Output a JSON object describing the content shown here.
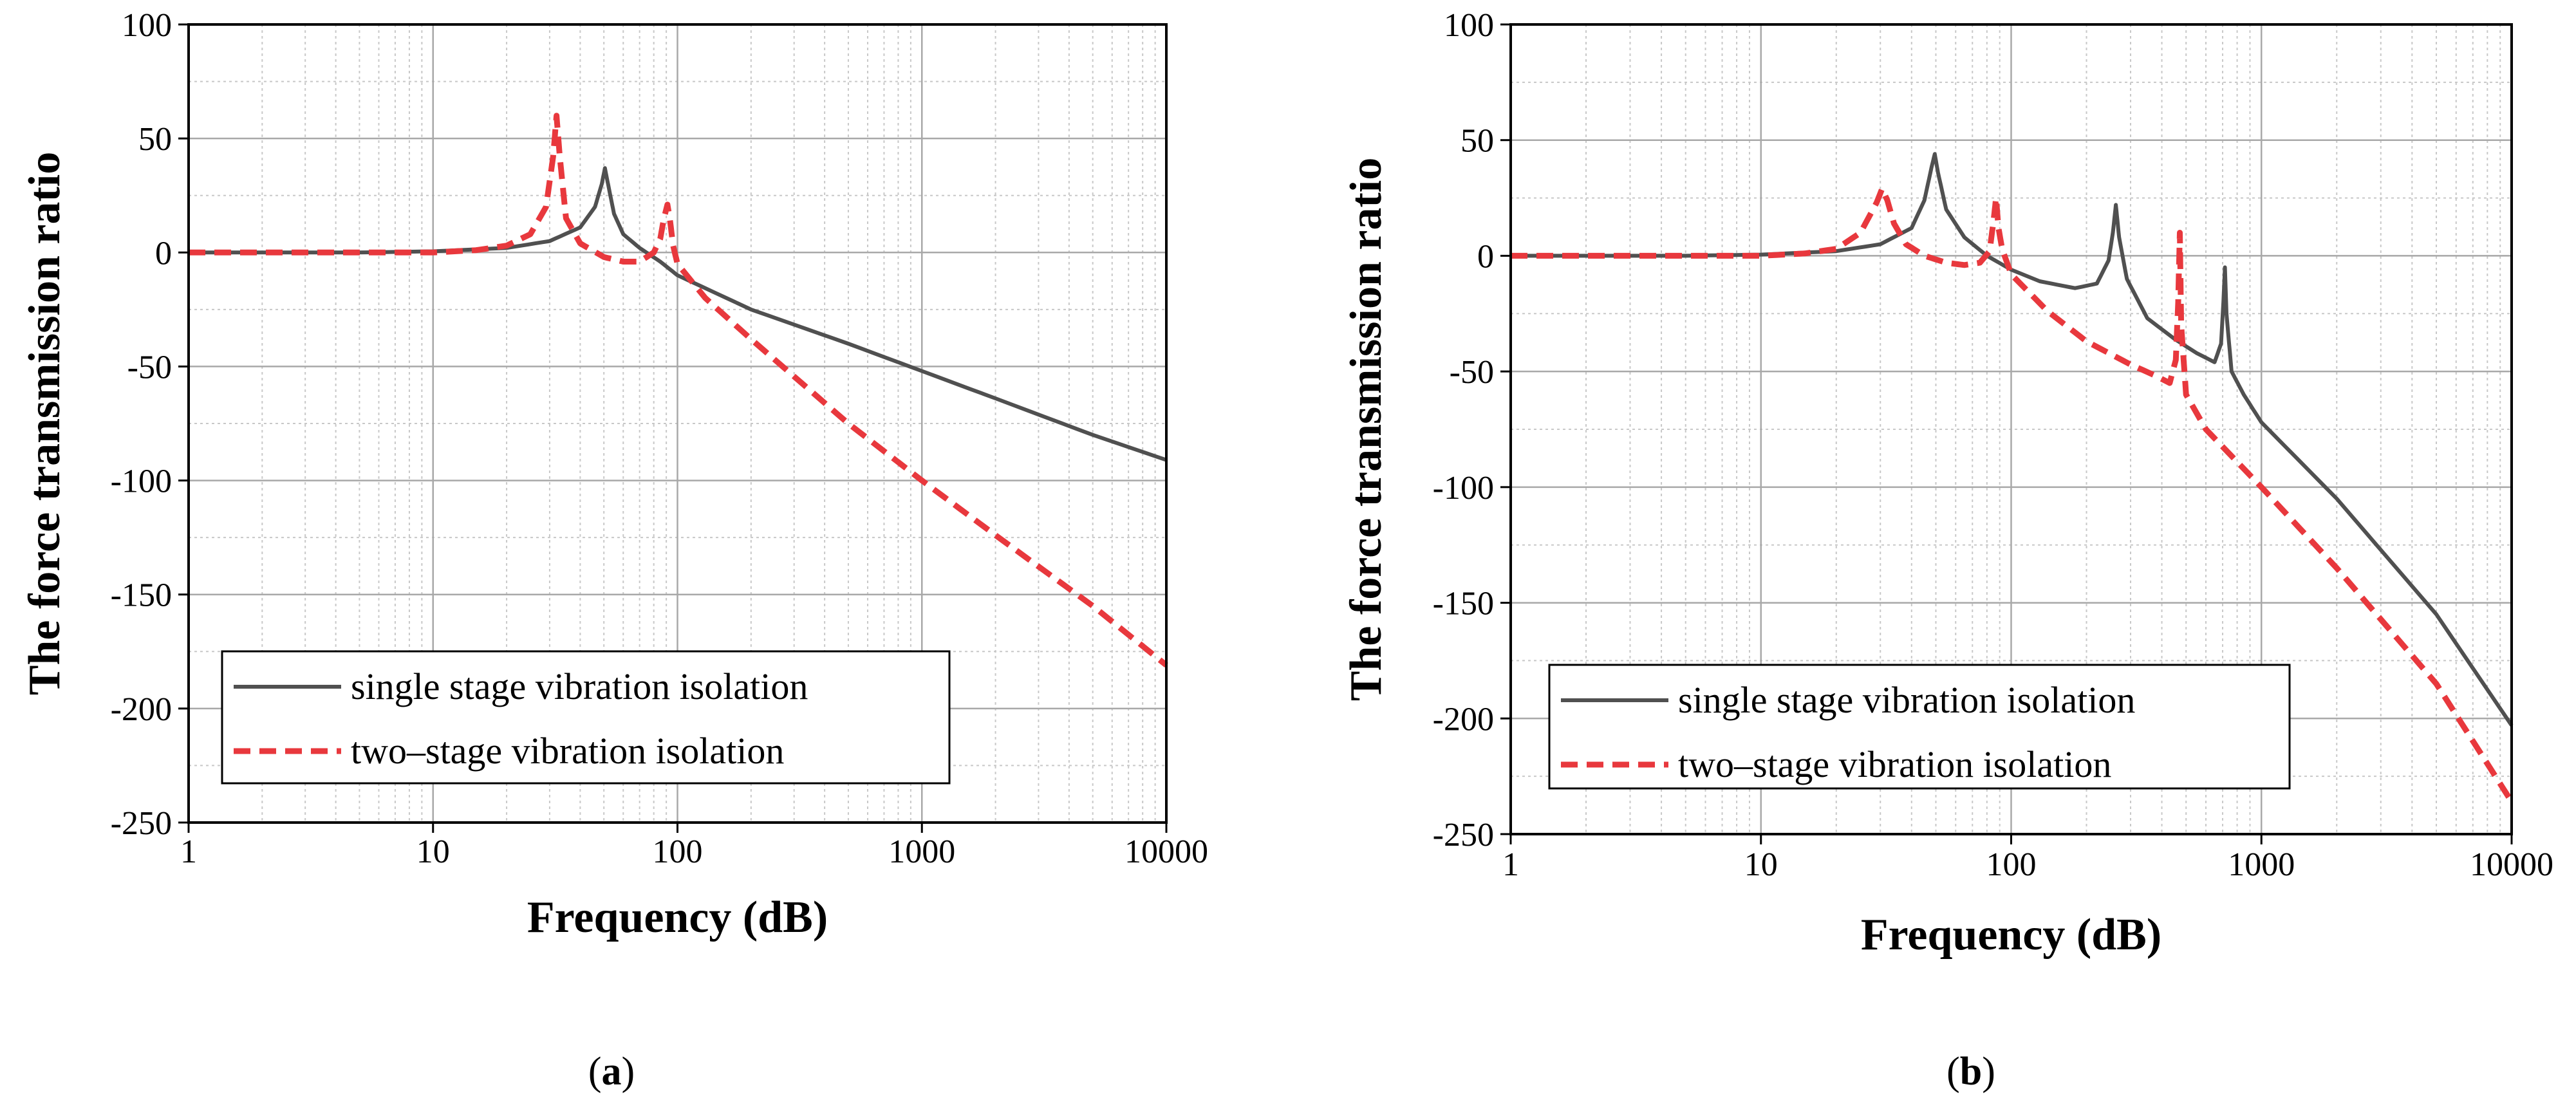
{
  "figure": {
    "panels": [
      {
        "label_open": "(",
        "label_letter": "a",
        "label_close": ")"
      },
      {
        "label_open": "(",
        "label_letter": "b",
        "label_close": ")"
      }
    ]
  },
  "chart_data": [
    {
      "type": "line",
      "panel": "a",
      "xlabel": "Frequency (dB)",
      "ylabel": "The force transmission ratio",
      "xscale": "log",
      "xlim": [
        1,
        10000
      ],
      "ylim": [
        -250,
        100
      ],
      "xticks": [
        1,
        10,
        100,
        1000,
        10000
      ],
      "xtick_labels": [
        "1",
        "10",
        "100",
        "1000",
        "10000"
      ],
      "yticks": [
        100,
        50,
        0,
        -50,
        -100,
        -150,
        -200,
        -250
      ],
      "ytick_labels": [
        "100",
        "50",
        "0",
        "-50",
        "-100",
        "-150",
        "-200",
        "-250"
      ],
      "grid": true,
      "legend_position": "lower-left",
      "series": [
        {
          "name": "single stage vibration isolation",
          "color": "#505050",
          "dash": "solid",
          "points": [
            [
              1,
              0
            ],
            [
              5,
              0
            ],
            [
              10,
              0.5
            ],
            [
              20,
              2
            ],
            [
              30,
              5
            ],
            [
              40,
              11
            ],
            [
              46,
              20
            ],
            [
              49,
              30
            ],
            [
              50.5,
              37
            ],
            [
              52,
              30
            ],
            [
              55,
              17
            ],
            [
              60,
              8
            ],
            [
              70,
              2
            ],
            [
              85,
              -4
            ],
            [
              100,
              -10
            ],
            [
              200,
              -25
            ],
            [
              500,
              -40
            ],
            [
              1000,
              -52
            ],
            [
              2000,
              -64
            ],
            [
              5000,
              -80
            ],
            [
              10000,
              -91
            ]
          ]
        },
        {
          "name": "two–stage vibration isolation",
          "color": "#e8383d",
          "dash": "dashed",
          "points": [
            [
              1,
              0
            ],
            [
              5,
              0
            ],
            [
              10,
              0
            ],
            [
              15,
              1
            ],
            [
              20,
              3
            ],
            [
              25,
              8
            ],
            [
              29,
              20
            ],
            [
              31,
              42
            ],
            [
              32,
              60
            ],
            [
              33,
              42
            ],
            [
              35,
              15
            ],
            [
              40,
              4
            ],
            [
              50,
              -2
            ],
            [
              60,
              -4
            ],
            [
              70,
              -4
            ],
            [
              80,
              0
            ],
            [
              85,
              6
            ],
            [
              88,
              15
            ],
            [
              91,
              21
            ],
            [
              93,
              15
            ],
            [
              96,
              3
            ],
            [
              100,
              -5
            ],
            [
              130,
              -20
            ],
            [
              200,
              -38
            ],
            [
              500,
              -75
            ],
            [
              1000,
              -100
            ],
            [
              2000,
              -124
            ],
            [
              5000,
              -155
            ],
            [
              10000,
              -181
            ]
          ]
        }
      ]
    },
    {
      "type": "line",
      "panel": "b",
      "xlabel": "Frequency (dB)",
      "ylabel": "The force transmission ratio",
      "xscale": "log",
      "xlim": [
        1,
        10000
      ],
      "ylim": [
        -250,
        100
      ],
      "xticks": [
        1,
        10,
        100,
        1000,
        10000
      ],
      "xtick_labels": [
        "1",
        "10",
        "100",
        "1000",
        "10000"
      ],
      "yticks": [
        100,
        50,
        0,
        -50,
        -100,
        -150,
        -200,
        -250
      ],
      "ytick_labels": [
        "100",
        "50",
        "0",
        "-50",
        "-100",
        "-150",
        "-200",
        "-250"
      ],
      "grid": true,
      "legend_position": "lower-left",
      "series": [
        {
          "name": "single stage vibration isolation",
          "color": "#505050",
          "dash": "solid",
          "points": [
            [
              1,
              0
            ],
            [
              5,
              0
            ],
            [
              10,
              0.5
            ],
            [
              20,
              2
            ],
            [
              30,
              5
            ],
            [
              40,
              12
            ],
            [
              45,
              24
            ],
            [
              48,
              38
            ],
            [
              49.5,
              44
            ],
            [
              51,
              36
            ],
            [
              55,
              20
            ],
            [
              65,
              8
            ],
            [
              80,
              0
            ],
            [
              100,
              -6
            ],
            [
              130,
              -11
            ],
            [
              180,
              -14
            ],
            [
              220,
              -12
            ],
            [
              245,
              -2
            ],
            [
              255,
              10
            ],
            [
              262,
              22
            ],
            [
              270,
              8
            ],
            [
              290,
              -10
            ],
            [
              350,
              -27
            ],
            [
              450,
              -36
            ],
            [
              550,
              -42
            ],
            [
              650,
              -46
            ],
            [
              690,
              -38
            ],
            [
              705,
              -20
            ],
            [
              715,
              -5
            ],
            [
              725,
              -25
            ],
            [
              760,
              -50
            ],
            [
              850,
              -60
            ],
            [
              1000,
              -72
            ],
            [
              2000,
              -105
            ],
            [
              5000,
              -155
            ],
            [
              10000,
              -203
            ]
          ]
        },
        {
          "name": "two–stage vibration isolation",
          "color": "#e8383d",
          "dash": "dashed",
          "points": [
            [
              1,
              0
            ],
            [
              5,
              0
            ],
            [
              10,
              0
            ],
            [
              15,
              1
            ],
            [
              20,
              3
            ],
            [
              25,
              10
            ],
            [
              29,
              23
            ],
            [
              30.5,
              29
            ],
            [
              32,
              24
            ],
            [
              34,
              14
            ],
            [
              38,
              5
            ],
            [
              45,
              0
            ],
            [
              55,
              -3
            ],
            [
              65,
              -4
            ],
            [
              75,
              -3
            ],
            [
              82,
              2
            ],
            [
              85,
              15
            ],
            [
              87,
              25
            ],
            [
              89,
              12
            ],
            [
              92,
              3
            ],
            [
              100,
              -8
            ],
            [
              140,
              -24
            ],
            [
              200,
              -37
            ],
            [
              300,
              -47
            ],
            [
              380,
              -52
            ],
            [
              430,
              -55
            ],
            [
              455,
              -45
            ],
            [
              465,
              -20
            ],
            [
              472,
              10
            ],
            [
              478,
              -30
            ],
            [
              500,
              -60
            ],
            [
              600,
              -75
            ],
            [
              1000,
              -100
            ],
            [
              2000,
              -135
            ],
            [
              5000,
              -185
            ],
            [
              10000,
              -236
            ]
          ]
        }
      ]
    }
  ]
}
